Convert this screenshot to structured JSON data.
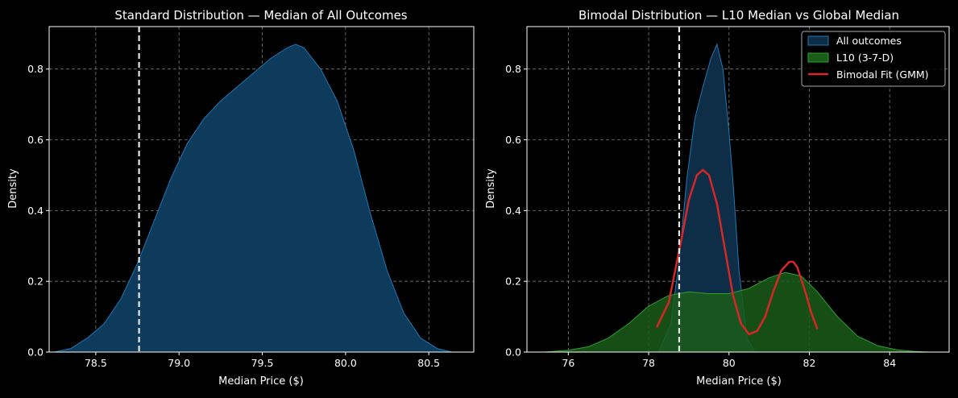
{
  "chart_data": [
    {
      "type": "area",
      "title": "Standard Distribution — Median of All Outcomes",
      "xlabel": "Median Price ($)",
      "ylabel": "Density",
      "xlim": [
        78.22,
        80.77
      ],
      "ylim": [
        0,
        0.92
      ],
      "xticks": [
        "78.5",
        "79.0",
        "79.5",
        "80.0",
        "80.5"
      ],
      "xtick_values": [
        78.5,
        79.0,
        79.5,
        80.0,
        80.5
      ],
      "yticks": [
        "0.0",
        "0.2",
        "0.4",
        "0.6",
        "0.8"
      ],
      "ytick_values": [
        0,
        0.2,
        0.4,
        0.6,
        0.8
      ],
      "grid": true,
      "reference_line_x": 78.76,
      "series": [
        {
          "color": "#1f77b4",
          "fill": "#0e3a5c",
          "x": [
            78.25,
            78.35,
            78.45,
            78.55,
            78.65,
            78.75,
            78.85,
            78.95,
            79.05,
            79.15,
            79.25,
            79.35,
            79.45,
            79.55,
            79.65,
            79.7,
            79.75,
            79.85,
            79.95,
            80.05,
            80.1,
            80.15,
            80.25,
            80.35,
            80.45,
            80.55,
            80.64
          ],
          "y": [
            0.0,
            0.01,
            0.04,
            0.08,
            0.15,
            0.25,
            0.37,
            0.49,
            0.59,
            0.66,
            0.71,
            0.75,
            0.79,
            0.83,
            0.86,
            0.87,
            0.86,
            0.8,
            0.71,
            0.57,
            0.48,
            0.39,
            0.23,
            0.11,
            0.04,
            0.01,
            0.0
          ]
        }
      ]
    },
    {
      "type": "area",
      "title": "Bimodal Distribution — L10 Median vs Global Median",
      "xlabel": "Median Price ($)",
      "ylabel": "Density",
      "xlim": [
        74.97,
        85.48
      ],
      "ylim": [
        0,
        0.92
      ],
      "xticks": [
        "76",
        "78",
        "80",
        "82",
        "84"
      ],
      "xtick_values": [
        76,
        78,
        80,
        82,
        84
      ],
      "yticks": [
        "0.0",
        "0.2",
        "0.4",
        "0.6",
        "0.8"
      ],
      "ytick_values": [
        0,
        0.2,
        0.4,
        0.6,
        0.8
      ],
      "grid": true,
      "legend_position": "top-right",
      "reference_line_x": 78.76,
      "series": [
        {
          "name": "All outcomes",
          "color": "#1f77b4",
          "fill": "#0e2e48",
          "x": [
            78.25,
            78.55,
            78.75,
            78.95,
            79.15,
            79.35,
            79.55,
            79.7,
            79.85,
            80.0,
            80.1,
            80.25,
            80.45,
            80.64
          ],
          "y": [
            0.0,
            0.08,
            0.25,
            0.49,
            0.66,
            0.75,
            0.83,
            0.87,
            0.8,
            0.62,
            0.48,
            0.23,
            0.04,
            0.0
          ]
        },
        {
          "name": "L10 (3-7-D)",
          "color": "#2ca02c",
          "fill": "#1a5c1a",
          "x": [
            75.4,
            76.0,
            76.5,
            77.0,
            77.5,
            78.0,
            78.5,
            79.0,
            79.5,
            80.0,
            80.5,
            81.0,
            81.4,
            81.8,
            82.2,
            82.7,
            83.2,
            83.7,
            84.2,
            84.6,
            85.0
          ],
          "y": [
            0.0,
            0.005,
            0.015,
            0.04,
            0.08,
            0.13,
            0.16,
            0.17,
            0.165,
            0.165,
            0.18,
            0.21,
            0.225,
            0.215,
            0.17,
            0.1,
            0.045,
            0.018,
            0.006,
            0.002,
            0.0
          ]
        },
        {
          "name": "Bimodal Fit (GMM)",
          "color": "#d62728",
          "x": [
            78.2,
            78.5,
            78.8,
            79.0,
            79.2,
            79.35,
            79.5,
            79.7,
            79.9,
            80.1,
            80.3,
            80.5,
            80.7,
            80.9,
            81.1,
            81.3,
            81.5,
            81.6,
            81.7,
            81.9,
            82.05,
            82.2
          ],
          "y": [
            0.07,
            0.14,
            0.31,
            0.43,
            0.5,
            0.515,
            0.5,
            0.42,
            0.29,
            0.16,
            0.08,
            0.05,
            0.06,
            0.1,
            0.17,
            0.23,
            0.255,
            0.255,
            0.24,
            0.17,
            0.11,
            0.065
          ]
        }
      ]
    }
  ]
}
